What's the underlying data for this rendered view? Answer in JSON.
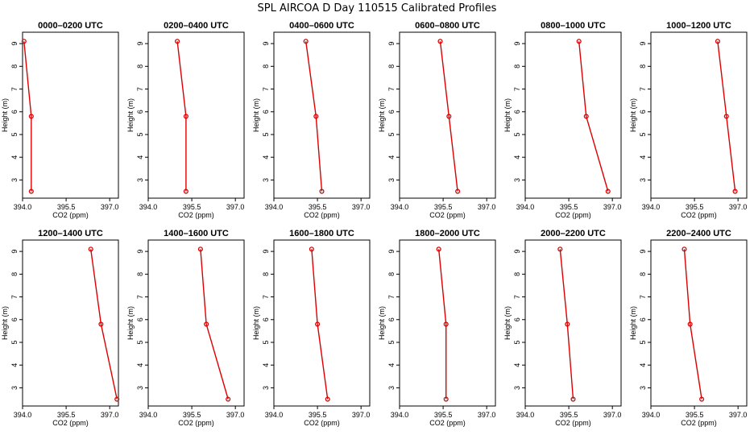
{
  "figure": {
    "title": "SPL AIRCOA D  Day 110515  Calibrated Profiles"
  },
  "chart_data": [
    {
      "type": "line",
      "title": "0000–0200 UTC",
      "xlabel": "CO2 (ppm)",
      "ylabel": "Height (m)",
      "xlim": [
        394.0,
        397.3
      ],
      "ylim": [
        2.2,
        9.5
      ],
      "xticks": [
        "394.0",
        "395.5",
        "397.0"
      ],
      "yticks": [
        "3",
        "4",
        "5",
        "6",
        "7",
        "8",
        "9"
      ],
      "series": [
        {
          "x": [
            394.05,
            394.3,
            394.3
          ],
          "y": [
            9.1,
            5.8,
            2.5
          ]
        }
      ],
      "color": "#dd0000",
      "grid": false
    },
    {
      "type": "line",
      "title": "0200–0400 UTC",
      "xlabel": "CO2 (ppm)",
      "ylabel": "Height (m)",
      "xlim": [
        394.0,
        397.3
      ],
      "ylim": [
        2.2,
        9.5
      ],
      "xticks": [
        "394.0",
        "395.5",
        "397.0"
      ],
      "yticks": [
        "3",
        "4",
        "5",
        "6",
        "7",
        "8",
        "9"
      ],
      "series": [
        {
          "x": [
            395.0,
            395.3,
            395.3
          ],
          "y": [
            9.1,
            5.8,
            2.5
          ]
        }
      ],
      "color": "#dd0000",
      "grid": false
    },
    {
      "type": "line",
      "title": "0400–0600 UTC",
      "xlabel": "CO2 (ppm)",
      "ylabel": "Height (m)",
      "xlim": [
        394.0,
        397.3
      ],
      "ylim": [
        2.2,
        9.5
      ],
      "xticks": [
        "394.0",
        "395.5",
        "397.0"
      ],
      "yticks": [
        "3",
        "4",
        "5",
        "6",
        "7",
        "8",
        "9"
      ],
      "series": [
        {
          "x": [
            395.1,
            395.45,
            395.65
          ],
          "y": [
            9.1,
            5.8,
            2.5
          ]
        }
      ],
      "color": "#dd0000",
      "grid": false
    },
    {
      "type": "line",
      "title": "0600–0800 UTC",
      "xlabel": "CO2 (ppm)",
      "ylabel": "Height (m)",
      "xlim": [
        394.0,
        397.3
      ],
      "ylim": [
        2.2,
        9.5
      ],
      "xticks": [
        "394.0",
        "395.5",
        "397.0"
      ],
      "yticks": [
        "3",
        "4",
        "5",
        "6",
        "7",
        "8",
        "9"
      ],
      "series": [
        {
          "x": [
            395.4,
            395.7,
            396.0
          ],
          "y": [
            9.1,
            5.8,
            2.5
          ]
        }
      ],
      "color": "#dd0000",
      "grid": false
    },
    {
      "type": "line",
      "title": "0800–1000 UTC",
      "xlabel": "CO2 (ppm)",
      "ylabel": "Height (m)",
      "xlim": [
        394.0,
        397.3
      ],
      "ylim": [
        2.2,
        9.5
      ],
      "xticks": [
        "394.0",
        "395.5",
        "397.0"
      ],
      "yticks": [
        "3",
        "4",
        "5",
        "6",
        "7",
        "8",
        "9"
      ],
      "series": [
        {
          "x": [
            395.85,
            396.1,
            396.85
          ],
          "y": [
            9.1,
            5.8,
            2.5
          ]
        }
      ],
      "color": "#dd0000",
      "grid": false
    },
    {
      "type": "line",
      "title": "1000–1200 UTC",
      "xlabel": "CO2 (ppm)",
      "ylabel": "Height (m)",
      "xlim": [
        394.0,
        397.3
      ],
      "ylim": [
        2.2,
        9.5
      ],
      "xticks": [
        "394.0",
        "395.5",
        "397.0"
      ],
      "yticks": [
        "3",
        "4",
        "5",
        "6",
        "7",
        "8",
        "9"
      ],
      "series": [
        {
          "x": [
            396.3,
            396.6,
            396.9
          ],
          "y": [
            9.1,
            5.8,
            2.5
          ]
        }
      ],
      "color": "#dd0000",
      "grid": false
    },
    {
      "type": "line",
      "title": "1200–1400 UTC",
      "xlabel": "CO2 (ppm)",
      "ylabel": "Height (m)",
      "xlim": [
        394.0,
        397.3
      ],
      "ylim": [
        2.2,
        9.5
      ],
      "xticks": [
        "394.0",
        "395.5",
        "397.0"
      ],
      "yticks": [
        "3",
        "4",
        "5",
        "6",
        "7",
        "8",
        "9"
      ],
      "series": [
        {
          "x": [
            396.35,
            396.7,
            397.25
          ],
          "y": [
            9.1,
            5.8,
            2.5
          ]
        }
      ],
      "color": "#dd0000",
      "grid": false
    },
    {
      "type": "line",
      "title": "1400–1600 UTC",
      "xlabel": "CO2 (ppm)",
      "ylabel": "Height (m)",
      "xlim": [
        394.0,
        397.3
      ],
      "ylim": [
        2.2,
        9.5
      ],
      "xticks": [
        "394.0",
        "395.5",
        "397.0"
      ],
      "yticks": [
        "3",
        "4",
        "5",
        "6",
        "7",
        "8",
        "9"
      ],
      "series": [
        {
          "x": [
            395.8,
            396.0,
            396.75
          ],
          "y": [
            9.1,
            5.8,
            2.5
          ]
        }
      ],
      "color": "#dd0000",
      "grid": false
    },
    {
      "type": "line",
      "title": "1600–1800 UTC",
      "xlabel": "CO2 (ppm)",
      "ylabel": "Height (m)",
      "xlim": [
        394.0,
        397.3
      ],
      "ylim": [
        2.2,
        9.5
      ],
      "xticks": [
        "394.0",
        "395.5",
        "397.0"
      ],
      "yticks": [
        "3",
        "4",
        "5",
        "6",
        "7",
        "8",
        "9"
      ],
      "series": [
        {
          "x": [
            395.3,
            395.5,
            395.85
          ],
          "y": [
            9.1,
            5.8,
            2.5
          ]
        }
      ],
      "color": "#dd0000",
      "grid": false
    },
    {
      "type": "line",
      "title": "1800–2000 UTC",
      "xlabel": "CO2 (ppm)",
      "ylabel": "Height (m)",
      "xlim": [
        394.0,
        397.3
      ],
      "ylim": [
        2.2,
        9.5
      ],
      "xticks": [
        "394.0",
        "395.5",
        "397.0"
      ],
      "yticks": [
        "3",
        "4",
        "5",
        "6",
        "7",
        "8",
        "9"
      ],
      "series": [
        {
          "x": [
            395.35,
            395.6,
            395.6
          ],
          "y": [
            9.1,
            5.8,
            2.5
          ]
        }
      ],
      "color": "#dd0000",
      "grid": false
    },
    {
      "type": "line",
      "title": "2000–2200 UTC",
      "xlabel": "CO2 (ppm)",
      "ylabel": "Height (m)",
      "xlim": [
        394.0,
        397.3
      ],
      "ylim": [
        2.2,
        9.5
      ],
      "xticks": [
        "394.0",
        "395.5",
        "397.0"
      ],
      "yticks": [
        "3",
        "4",
        "5",
        "6",
        "7",
        "8",
        "9"
      ],
      "series": [
        {
          "x": [
            395.2,
            395.45,
            395.65
          ],
          "y": [
            9.1,
            5.8,
            2.5
          ]
        }
      ],
      "color": "#dd0000",
      "grid": false
    },
    {
      "type": "line",
      "title": "2200–2400 UTC",
      "xlabel": "CO2 (ppm)",
      "ylabel": "Height (m)",
      "xlim": [
        394.0,
        397.3
      ],
      "ylim": [
        2.2,
        9.5
      ],
      "xticks": [
        "394.0",
        "395.5",
        "397.0"
      ],
      "yticks": [
        "3",
        "4",
        "5",
        "6",
        "7",
        "8",
        "9"
      ],
      "series": [
        {
          "x": [
            395.15,
            395.35,
            395.75
          ],
          "y": [
            9.1,
            5.8,
            2.5
          ]
        }
      ],
      "color": "#dd0000",
      "grid": false
    }
  ]
}
